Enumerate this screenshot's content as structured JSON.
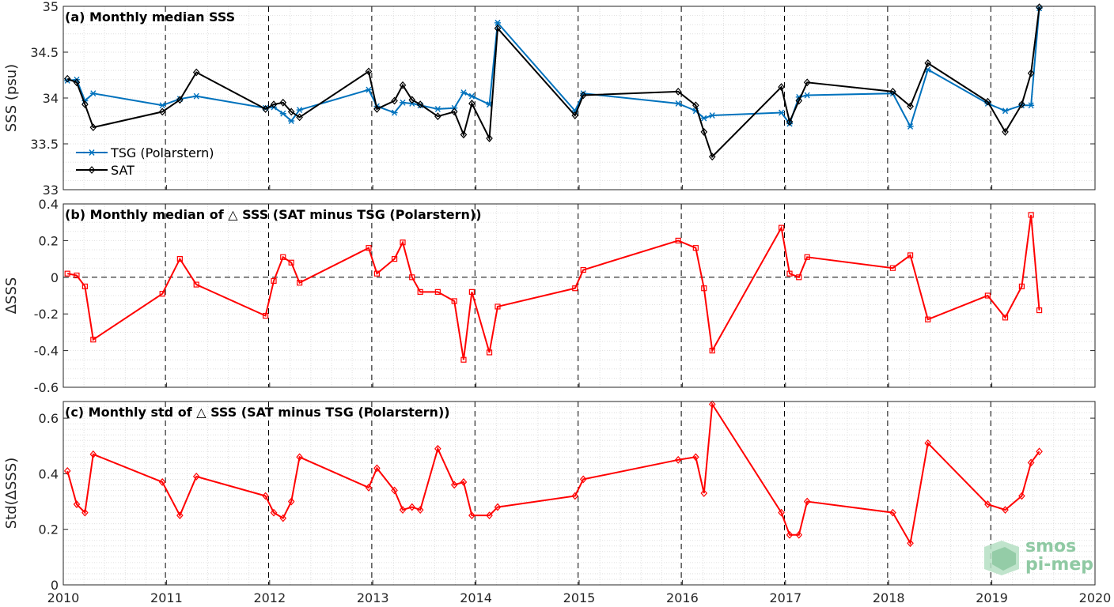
{
  "chart_data": [
    {
      "type": "line",
      "title": "(a) Monthly median SSS",
      "ylabel": "SSS (psu)",
      "ylim": [
        33,
        35
      ],
      "yticks": [
        "33",
        "33.5",
        "34",
        "34.5",
        "35"
      ],
      "xlim": [
        2010,
        2020
      ],
      "grid": true,
      "legend_position": "bottom-left",
      "series": [
        {
          "name": "TSG (Polarstern)",
          "color": "#0072bd",
          "marker": "asterisk",
          "points": [
            [
              2010.04,
              34.19
            ],
            [
              2010.13,
              34.2
            ],
            [
              2010.21,
              33.97
            ],
            [
              2010.29,
              34.05
            ],
            [
              2010.96,
              33.92
            ],
            [
              2011.13,
              33.99
            ],
            [
              2011.29,
              34.02
            ],
            [
              2011.96,
              33.89
            ],
            [
              2012.04,
              33.9
            ],
            [
              2012.13,
              33.83
            ],
            [
              2012.21,
              33.75
            ],
            [
              2012.29,
              33.87
            ],
            [
              2012.96,
              34.09
            ],
            [
              2013.04,
              33.91
            ],
            [
              2013.21,
              33.84
            ],
            [
              2013.29,
              33.95
            ],
            [
              2013.38,
              33.94
            ],
            [
              2013.46,
              33.92
            ],
            [
              2013.63,
              33.88
            ],
            [
              2013.79,
              33.89
            ],
            [
              2013.88,
              34.06
            ],
            [
              2013.96,
              34.02
            ],
            [
              2014.13,
              33.93
            ],
            [
              2014.21,
              34.82
            ],
            [
              2014.96,
              33.86
            ],
            [
              2015.04,
              34.05
            ],
            [
              2015.96,
              33.94
            ],
            [
              2016.13,
              33.86
            ],
            [
              2016.21,
              33.78
            ],
            [
              2016.29,
              33.81
            ],
            [
              2016.96,
              33.84
            ],
            [
              2017.04,
              33.72
            ],
            [
              2017.13,
              34.01
            ],
            [
              2017.21,
              34.03
            ],
            [
              2018.04,
              34.05
            ],
            [
              2018.21,
              33.69
            ],
            [
              2018.38,
              34.31
            ],
            [
              2018.96,
              33.94
            ],
            [
              2019.13,
              33.86
            ],
            [
              2019.29,
              33.92
            ],
            [
              2019.38,
              33.92
            ],
            [
              2019.46,
              34.98
            ]
          ]
        },
        {
          "name": "SAT",
          "color": "#000000",
          "marker": "diamond",
          "points": [
            [
              2010.04,
              34.21
            ],
            [
              2010.13,
              34.17
            ],
            [
              2010.21,
              33.93
            ],
            [
              2010.29,
              33.68
            ],
            [
              2010.96,
              33.85
            ],
            [
              2011.13,
              33.98
            ],
            [
              2011.29,
              34.28
            ],
            [
              2011.96,
              33.88
            ],
            [
              2012.04,
              33.93
            ],
            [
              2012.13,
              33.95
            ],
            [
              2012.21,
              33.85
            ],
            [
              2012.29,
              33.79
            ],
            [
              2012.96,
              34.29
            ],
            [
              2013.04,
              33.88
            ],
            [
              2013.21,
              33.97
            ],
            [
              2013.29,
              34.14
            ],
            [
              2013.38,
              33.98
            ],
            [
              2013.46,
              33.93
            ],
            [
              2013.63,
              33.8
            ],
            [
              2013.79,
              33.85
            ],
            [
              2013.88,
              33.6
            ],
            [
              2013.96,
              33.94
            ],
            [
              2014.13,
              33.56
            ],
            [
              2014.21,
              34.76
            ],
            [
              2014.96,
              33.81
            ],
            [
              2015.04,
              34.03
            ],
            [
              2015.96,
              34.07
            ],
            [
              2016.13,
              33.92
            ],
            [
              2016.21,
              33.63
            ],
            [
              2016.29,
              33.36
            ],
            [
              2016.96,
              34.12
            ],
            [
              2017.04,
              33.74
            ],
            [
              2017.13,
              33.97
            ],
            [
              2017.21,
              34.17
            ],
            [
              2018.04,
              34.07
            ],
            [
              2018.21,
              33.91
            ],
            [
              2018.38,
              34.38
            ],
            [
              2018.96,
              33.96
            ],
            [
              2019.13,
              33.63
            ],
            [
              2019.29,
              33.93
            ],
            [
              2019.38,
              34.27
            ],
            [
              2019.46,
              34.99
            ]
          ]
        }
      ]
    },
    {
      "type": "line",
      "title": "(b) Monthly median of △ SSS (SAT minus TSG (Polarstern))",
      "ylabel": "ΔSSS",
      "ylim": [
        -0.6,
        0.4
      ],
      "yticks": [
        "-0.6",
        "-0.4",
        "-0.2",
        "0",
        "0.2",
        "0.4"
      ],
      "xlim": [
        2010,
        2020
      ],
      "grid": true,
      "zero_line": true,
      "series": [
        {
          "color": "#ff0000",
          "marker": "square",
          "points": [
            [
              2010.04,
              0.02
            ],
            [
              2010.13,
              0.01
            ],
            [
              2010.21,
              -0.05
            ],
            [
              2010.29,
              -0.34
            ],
            [
              2010.96,
              -0.09
            ],
            [
              2011.13,
              0.1
            ],
            [
              2011.29,
              -0.04
            ],
            [
              2011.96,
              -0.21
            ],
            [
              2012.04,
              -0.02
            ],
            [
              2012.13,
              0.11
            ],
            [
              2012.21,
              0.08
            ],
            [
              2012.29,
              -0.03
            ],
            [
              2012.96,
              0.16
            ],
            [
              2013.04,
              0.02
            ],
            [
              2013.21,
              0.1
            ],
            [
              2013.29,
              0.19
            ],
            [
              2013.38,
              0.0
            ],
            [
              2013.46,
              -0.08
            ],
            [
              2013.63,
              -0.08
            ],
            [
              2013.79,
              -0.13
            ],
            [
              2013.88,
              -0.45
            ],
            [
              2013.96,
              -0.08
            ],
            [
              2014.13,
              -0.41
            ],
            [
              2014.21,
              -0.16
            ],
            [
              2014.96,
              -0.06
            ],
            [
              2015.04,
              0.04
            ],
            [
              2015.96,
              0.2
            ],
            [
              2016.13,
              0.16
            ],
            [
              2016.21,
              -0.06
            ],
            [
              2016.29,
              -0.4
            ],
            [
              2016.96,
              0.27
            ],
            [
              2017.04,
              0.02
            ],
            [
              2017.13,
              0.0
            ],
            [
              2017.21,
              0.11
            ],
            [
              2018.04,
              0.05
            ],
            [
              2018.21,
              0.12
            ],
            [
              2018.38,
              -0.23
            ],
            [
              2018.96,
              -0.1
            ],
            [
              2019.13,
              -0.22
            ],
            [
              2019.29,
              -0.05
            ],
            [
              2019.38,
              0.34
            ],
            [
              2019.46,
              -0.18
            ]
          ]
        }
      ]
    },
    {
      "type": "line",
      "title": "(c) Monthly std of △ SSS (SAT minus TSG (Polarstern))",
      "ylabel": "Std(ΔSSS)",
      "ylim": [
        0,
        0.66
      ],
      "yticks": [
        "0",
        "0.2",
        "0.4",
        "0.6"
      ],
      "xlim": [
        2010,
        2020
      ],
      "xticks": [
        "2010",
        "2011",
        "2012",
        "2013",
        "2014",
        "2015",
        "2016",
        "2017",
        "2018",
        "2019",
        "2020"
      ],
      "grid": true,
      "series": [
        {
          "color": "#ff0000",
          "marker": "diamond",
          "points": [
            [
              2010.04,
              0.41
            ],
            [
              2010.13,
              0.29
            ],
            [
              2010.21,
              0.26
            ],
            [
              2010.29,
              0.47
            ],
            [
              2010.96,
              0.37
            ],
            [
              2011.13,
              0.25
            ],
            [
              2011.29,
              0.39
            ],
            [
              2011.96,
              0.32
            ],
            [
              2012.04,
              0.26
            ],
            [
              2012.13,
              0.24
            ],
            [
              2012.21,
              0.3
            ],
            [
              2012.29,
              0.46
            ],
            [
              2012.96,
              0.35
            ],
            [
              2013.04,
              0.42
            ],
            [
              2013.21,
              0.34
            ],
            [
              2013.29,
              0.27
            ],
            [
              2013.38,
              0.28
            ],
            [
              2013.46,
              0.27
            ],
            [
              2013.63,
              0.49
            ],
            [
              2013.79,
              0.36
            ],
            [
              2013.88,
              0.37
            ],
            [
              2013.96,
              0.25
            ],
            [
              2014.13,
              0.25
            ],
            [
              2014.21,
              0.28
            ],
            [
              2014.96,
              0.32
            ],
            [
              2015.04,
              0.38
            ],
            [
              2015.96,
              0.45
            ],
            [
              2016.13,
              0.46
            ],
            [
              2016.21,
              0.33
            ],
            [
              2016.29,
              0.65
            ],
            [
              2016.96,
              0.26
            ],
            [
              2017.04,
              0.18
            ],
            [
              2017.13,
              0.18
            ],
            [
              2017.21,
              0.3
            ],
            [
              2018.04,
              0.26
            ],
            [
              2018.21,
              0.15
            ],
            [
              2018.38,
              0.51
            ],
            [
              2018.96,
              0.29
            ],
            [
              2019.13,
              0.27
            ],
            [
              2019.29,
              0.32
            ],
            [
              2019.38,
              0.44
            ],
            [
              2019.46,
              0.48
            ]
          ]
        }
      ]
    }
  ],
  "logo": {
    "line1": "smos",
    "line2": "pi-mep"
  }
}
